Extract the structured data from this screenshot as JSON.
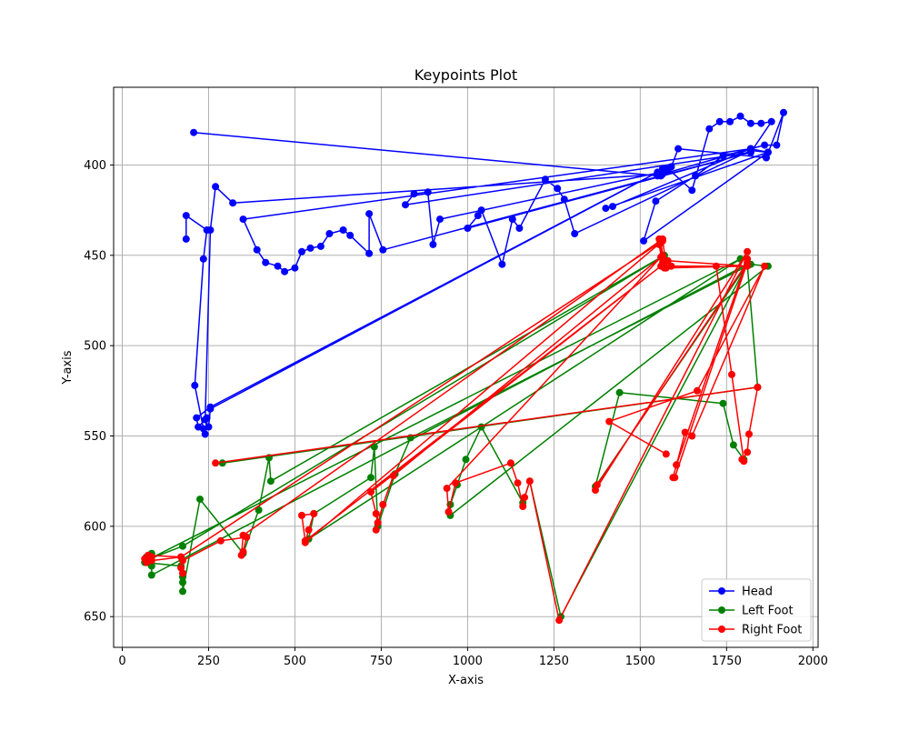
{
  "chart_data": {
    "type": "line",
    "title": "Keypoints Plot",
    "xlabel": "X-axis",
    "ylabel": "Y-axis",
    "xlim": [
      -25,
      2015
    ],
    "ylim": [
      667,
      357
    ],
    "y_inverted": true,
    "grid": true,
    "legend_position": "lower-right",
    "x_ticks": [
      0,
      250,
      500,
      750,
      1000,
      1250,
      1500,
      1750,
      2000
    ],
    "y_ticks": [
      400,
      450,
      500,
      550,
      600,
      650
    ],
    "series": [
      {
        "name": "Head",
        "color": "#0000ff",
        "points": [
          [
            207,
            382
          ],
          [
            1550,
            406
          ],
          [
            1565,
            402
          ],
          [
            1580,
            403
          ],
          [
            1590,
            401
          ],
          [
            1610,
            391
          ],
          [
            1865,
            396
          ],
          [
            1915,
            371
          ],
          [
            1895,
            389
          ],
          [
            1860,
            389
          ],
          [
            1820,
            391
          ],
          [
            1740,
            395
          ],
          [
            1660,
            406
          ],
          [
            1545,
            420
          ],
          [
            1510,
            442
          ],
          [
            1870,
            393
          ],
          [
            1820,
            391
          ],
          [
            1420,
            423
          ],
          [
            1400,
            424
          ],
          [
            1870,
            393
          ],
          [
            1820,
            392
          ],
          [
            1310,
            438
          ],
          [
            1280,
            419
          ],
          [
            1260,
            413
          ],
          [
            1225,
            408
          ],
          [
            1150,
            435
          ],
          [
            1130,
            430
          ],
          [
            1100,
            455
          ],
          [
            1040,
            425
          ],
          [
            1030,
            428
          ],
          [
            1000,
            435
          ],
          [
            1820,
            393
          ],
          [
            1880,
            376
          ],
          [
            1850,
            377
          ],
          [
            1820,
            377
          ],
          [
            1790,
            373
          ],
          [
            1760,
            376
          ],
          [
            1730,
            376
          ],
          [
            1700,
            380
          ],
          [
            1650,
            414
          ],
          [
            1580,
            402
          ],
          [
            1570,
            404
          ],
          [
            1560,
            404
          ],
          [
            920,
            430
          ],
          [
            900,
            444
          ],
          [
            885,
            415
          ],
          [
            845,
            416
          ],
          [
            820,
            422
          ],
          [
            1820,
            393
          ],
          [
            1560,
            406
          ],
          [
            755,
            447
          ],
          [
            715,
            427
          ],
          [
            715,
            449
          ],
          [
            660,
            439
          ],
          [
            640,
            436
          ],
          [
            600,
            438
          ],
          [
            575,
            445
          ],
          [
            545,
            446
          ],
          [
            520,
            448
          ],
          [
            500,
            457
          ],
          [
            470,
            459
          ],
          [
            450,
            456
          ],
          [
            415,
            454
          ],
          [
            390,
            447
          ],
          [
            350,
            430
          ],
          [
            1820,
            391
          ],
          [
            1565,
            405
          ],
          [
            320,
            421
          ],
          [
            270,
            412
          ],
          [
            255,
            436
          ],
          [
            240,
            541
          ],
          [
            250,
            545
          ],
          [
            255,
            535
          ],
          [
            1550,
            404
          ],
          [
            255,
            534
          ],
          [
            215,
            540
          ],
          [
            220,
            545
          ],
          [
            245,
            540
          ],
          [
            240,
            549
          ],
          [
            235,
            546
          ],
          [
            210,
            522
          ],
          [
            235,
            452
          ],
          [
            245,
            436
          ],
          [
            185,
            428
          ],
          [
            185,
            441
          ]
        ]
      },
      {
        "name": "Left Foot",
        "color": "#008000",
        "points": [
          [
            290,
            565
          ],
          [
            1840,
            523
          ],
          [
            1810,
            455
          ],
          [
            85,
            627
          ],
          [
            85,
            622
          ],
          [
            70,
            617
          ],
          [
            72,
            620
          ],
          [
            85,
            615
          ],
          [
            80,
            618
          ],
          [
            175,
            611
          ],
          [
            1570,
            450
          ],
          [
            430,
            575
          ],
          [
            425,
            562
          ],
          [
            395,
            591
          ],
          [
            350,
            615
          ],
          [
            225,
            585
          ],
          [
            175,
            636
          ],
          [
            175,
            631
          ],
          [
            175,
            628
          ],
          [
            170,
            622
          ],
          [
            65,
            620
          ],
          [
            80,
            618
          ],
          [
            1790,
            452
          ],
          [
            540,
            607
          ],
          [
            555,
            593
          ],
          [
            720,
            573
          ],
          [
            730,
            556
          ],
          [
            740,
            600
          ],
          [
            790,
            571
          ],
          [
            835,
            551
          ],
          [
            1820,
            455
          ],
          [
            1870,
            456
          ],
          [
            950,
            594
          ],
          [
            950,
            588
          ],
          [
            970,
            577
          ],
          [
            995,
            563
          ],
          [
            1040,
            545
          ],
          [
            1160,
            587
          ],
          [
            1180,
            575
          ],
          [
            1270,
            650
          ],
          [
            1810,
            455
          ],
          [
            1370,
            578
          ],
          [
            1440,
            526
          ],
          [
            1740,
            532
          ],
          [
            1770,
            555
          ],
          [
            1800,
            563
          ]
        ]
      },
      {
        "name": "Right Foot",
        "color": "#ff0000",
        "points": [
          [
            270,
            565
          ],
          [
            1840,
            523
          ],
          [
            1815,
            549
          ],
          [
            1810,
            559
          ],
          [
            1795,
            563
          ],
          [
            1800,
            564
          ],
          [
            1765,
            516
          ],
          [
            1720,
            456
          ],
          [
            1590,
            456
          ],
          [
            1580,
            453
          ],
          [
            1810,
            456
          ],
          [
            1570,
            457
          ],
          [
            1560,
            443
          ],
          [
            1555,
            441
          ],
          [
            1565,
            450
          ],
          [
            1570,
            454
          ],
          [
            1565,
            456
          ],
          [
            1555,
            444
          ],
          [
            1565,
            454
          ],
          [
            1575,
            457
          ],
          [
            1565,
            441
          ],
          [
            350,
            605
          ],
          [
            345,
            616
          ],
          [
            350,
            614
          ],
          [
            360,
            606
          ],
          [
            285,
            608
          ],
          [
            175,
            619
          ],
          [
            170,
            623
          ],
          [
            175,
            626
          ],
          [
            170,
            617
          ],
          [
            85,
            619
          ],
          [
            70,
            620
          ],
          [
            65,
            618
          ],
          [
            70,
            619
          ],
          [
            85,
            617
          ],
          [
            75,
            616
          ],
          [
            170,
            617
          ],
          [
            1565,
            442
          ],
          [
            530,
            609
          ],
          [
            540,
            602
          ],
          [
            555,
            593
          ],
          [
            520,
            594
          ],
          [
            530,
            608
          ],
          [
            1560,
            456
          ],
          [
            720,
            581
          ],
          [
            735,
            593
          ],
          [
            740,
            598
          ],
          [
            735,
            602
          ],
          [
            755,
            588
          ],
          [
            785,
            572
          ],
          [
            1560,
            451
          ],
          [
            940,
            579
          ],
          [
            945,
            592
          ],
          [
            965,
            576
          ],
          [
            1125,
            565
          ],
          [
            1145,
            576
          ],
          [
            1160,
            589
          ],
          [
            1165,
            584
          ],
          [
            1180,
            575
          ],
          [
            1265,
            652
          ],
          [
            1810,
            448
          ],
          [
            1370,
            580
          ],
          [
            1375,
            577
          ],
          [
            1810,
            454
          ],
          [
            1600,
            573
          ],
          [
            1595,
            573
          ],
          [
            1605,
            566
          ],
          [
            1810,
            452
          ],
          [
            1605,
            566
          ],
          [
            1630,
            548
          ],
          [
            1650,
            550
          ],
          [
            1860,
            456
          ],
          [
            1665,
            525
          ],
          [
            1410,
            542
          ],
          [
            1575,
            560
          ]
        ]
      }
    ]
  }
}
